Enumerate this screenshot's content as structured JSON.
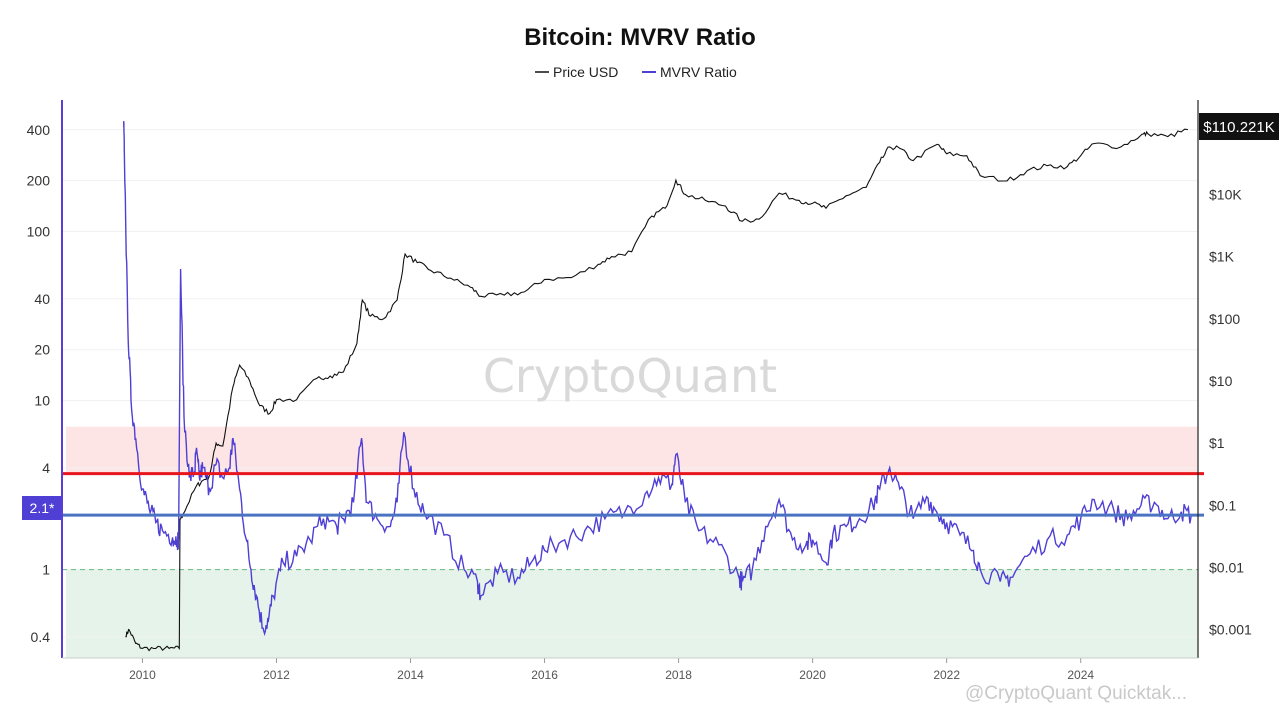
{
  "chart_data": {
    "type": "line",
    "title": "Bitcoin: MVRV Ratio",
    "legend": {
      "placement": "top-center",
      "entries": [
        "Price USD",
        "MVRV Ratio"
      ]
    },
    "colors": {
      "price": "#111111",
      "mvrv": "#4f3fd4",
      "red_line": "#e8161c",
      "blue_line": "#4a73c2",
      "overvalued_zone": "#fde5e5",
      "undervalued_zone": "#e6f3ea",
      "green_dashed": "#66bb7a",
      "left_axis_line": "#5a3fd6",
      "price_tag_bg": "#111111",
      "mvrv_tag_bg": "#4f3fd4"
    },
    "x_axis": {
      "ticks": [
        "2010",
        "2012",
        "2014",
        "2016",
        "2018",
        "2020",
        "2022",
        "2024"
      ],
      "range": [
        2008.8,
        2025.75
      ]
    },
    "left_axis": {
      "scale": "log",
      "range": [
        0.3,
        600
      ],
      "ticks": [
        {
          "value": 400,
          "label": "400"
        },
        {
          "value": 200,
          "label": "200"
        },
        {
          "value": 100,
          "label": "100"
        },
        {
          "value": 40,
          "label": "40"
        },
        {
          "value": 20,
          "label": "20"
        },
        {
          "value": 10,
          "label": "10"
        },
        {
          "value": 4,
          "label": "4"
        },
        {
          "value": 1,
          "label": "1"
        },
        {
          "value": 0.4,
          "label": "0.4"
        }
      ]
    },
    "right_axis": {
      "scale": "log",
      "range": [
        0.00035,
        330000
      ],
      "ticks": [
        {
          "value": 10000,
          "label": "$10K"
        },
        {
          "value": 1000,
          "label": "$1K"
        },
        {
          "value": 100,
          "label": "$100"
        },
        {
          "value": 10,
          "label": "$10"
        },
        {
          "value": 1,
          "label": "$1"
        },
        {
          "value": 0.1,
          "label": "$0.1"
        },
        {
          "value": 0.01,
          "label": "$0.01"
        },
        {
          "value": 0.001,
          "label": "$0.001"
        }
      ]
    },
    "last_price_label": "$110.221K",
    "last_mvrv_label": "2.1*",
    "reference_lines": {
      "red": 3.7,
      "blue": 2.1,
      "green_dashed": 1.0
    },
    "zones": {
      "overvalued": [
        3.7,
        7.0
      ],
      "undervalued": [
        0.3,
        1.0
      ]
    },
    "series": [
      {
        "name": "Price USD",
        "axis": "right",
        "x": [
          2009.75,
          2009.8,
          2009.9,
          2010.0,
          2010.2,
          2010.4,
          2010.55,
          2010.56,
          2010.6,
          2010.8,
          2010.9,
          2011.0,
          2011.1,
          2011.2,
          2011.35,
          2011.45,
          2011.6,
          2011.75,
          2011.9,
          2012.0,
          2012.3,
          2012.6,
          2012.8,
          2013.0,
          2013.2,
          2013.28,
          2013.4,
          2013.6,
          2013.8,
          2013.92,
          2014.1,
          2014.3,
          2014.6,
          2014.9,
          2015.05,
          2015.4,
          2015.7,
          2016.0,
          2016.4,
          2016.8,
          2017.0,
          2017.3,
          2017.6,
          2017.8,
          2017.96,
          2018.1,
          2018.4,
          2018.7,
          2018.95,
          2019.2,
          2019.5,
          2019.8,
          2020.0,
          2020.2,
          2020.5,
          2020.8,
          2021.0,
          2021.15,
          2021.3,
          2021.5,
          2021.86,
          2022.0,
          2022.3,
          2022.5,
          2022.9,
          2023.2,
          2023.5,
          2023.8,
          2024.0,
          2024.2,
          2024.6,
          2024.9,
          2025.0,
          2025.3,
          2025.6
        ],
        "values": [
          0.0008,
          0.001,
          0.0006,
          0.0005,
          0.0005,
          0.0005,
          0.0005,
          0.06,
          0.07,
          0.2,
          0.25,
          0.3,
          1.0,
          0.9,
          8,
          18,
          10,
          4,
          3,
          5,
          5,
          11,
          12,
          14,
          40,
          200,
          110,
          100,
          200,
          1100,
          800,
          600,
          450,
          320,
          230,
          240,
          270,
          430,
          460,
          750,
          1000,
          1200,
          4500,
          6000,
          17000,
          10000,
          8000,
          6500,
          3700,
          4000,
          10500,
          8000,
          7200,
          6000,
          9500,
          13000,
          33000,
          58000,
          55000,
          35000,
          64000,
          45000,
          42000,
          20000,
          16500,
          24000,
          29000,
          28000,
          42000,
          66000,
          58000,
          90000,
          95000,
          85000,
          110221
        ]
      },
      {
        "name": "MVRV Ratio",
        "axis": "left",
        "x": [
          2009.72,
          2009.73,
          2009.78,
          2009.83,
          2009.9,
          2010.0,
          2010.1,
          2010.2,
          2010.3,
          2010.45,
          2010.52,
          2010.54,
          2010.57,
          2010.62,
          2010.7,
          2010.78,
          2010.8,
          2010.85,
          2010.9,
          2011.0,
          2011.1,
          2011.2,
          2011.3,
          2011.35,
          2011.45,
          2011.55,
          2011.62,
          2011.7,
          2011.8,
          2011.88,
          2011.95,
          2012.1,
          2012.3,
          2012.5,
          2012.7,
          2012.9,
          2013.0,
          2013.15,
          2013.27,
          2013.35,
          2013.5,
          2013.7,
          2013.8,
          2013.9,
          2014.05,
          2014.2,
          2014.5,
          2014.8,
          2015.0,
          2015.05,
          2015.3,
          2015.6,
          2015.8,
          2016.0,
          2016.3,
          2016.6,
          2016.9,
          2017.2,
          2017.5,
          2017.7,
          2017.9,
          2017.96,
          2018.1,
          2018.3,
          2018.6,
          2018.9,
          2018.95,
          2019.1,
          2019.3,
          2019.5,
          2019.7,
          2019.9,
          2020.0,
          2020.2,
          2020.3,
          2020.5,
          2020.7,
          2020.9,
          2021.0,
          2021.15,
          2021.3,
          2021.5,
          2021.7,
          2021.85,
          2022.0,
          2022.2,
          2022.4,
          2022.5,
          2022.8,
          2022.95,
          2023.2,
          2023.5,
          2023.8,
          2024.0,
          2024.2,
          2024.5,
          2024.7,
          2024.9,
          2025.1,
          2025.3,
          2025.5,
          2025.65
        ],
        "values": [
          450,
          300,
          30,
          10,
          6,
          3,
          2.3,
          1.9,
          1.7,
          1.55,
          1.5,
          1.5,
          60,
          8,
          3.5,
          3.8,
          5,
          3.5,
          4,
          3,
          4.2,
          3.5,
          4,
          6,
          3,
          1.5,
          1,
          0.7,
          0.45,
          0.5,
          0.7,
          1.1,
          1.2,
          1.5,
          2.0,
          1.8,
          2.0,
          2.5,
          6.0,
          2.5,
          2.0,
          1.8,
          2.5,
          6.5,
          3.0,
          2.2,
          1.6,
          1.0,
          0.85,
          0.7,
          0.95,
          0.9,
          1.1,
          1.3,
          1.5,
          1.7,
          2.0,
          2.2,
          2.8,
          3.5,
          3.2,
          4.8,
          2.5,
          1.7,
          1.4,
          0.9,
          0.85,
          1.0,
          1.8,
          2.6,
          1.5,
          1.4,
          1.5,
          1.1,
          1.6,
          1.8,
          2.0,
          2.4,
          3.0,
          4.0,
          3.0,
          2.0,
          2.7,
          2.2,
          1.9,
          1.6,
          1.3,
          1.0,
          0.85,
          0.9,
          1.2,
          1.5,
          1.6,
          2.0,
          2.6,
          2.2,
          2.0,
          2.4,
          2.5,
          2.0,
          2.2,
          2.1
        ]
      }
    ]
  },
  "watermark": "CryptoQuant",
  "footer": "@CryptoQuant Quicktak..."
}
